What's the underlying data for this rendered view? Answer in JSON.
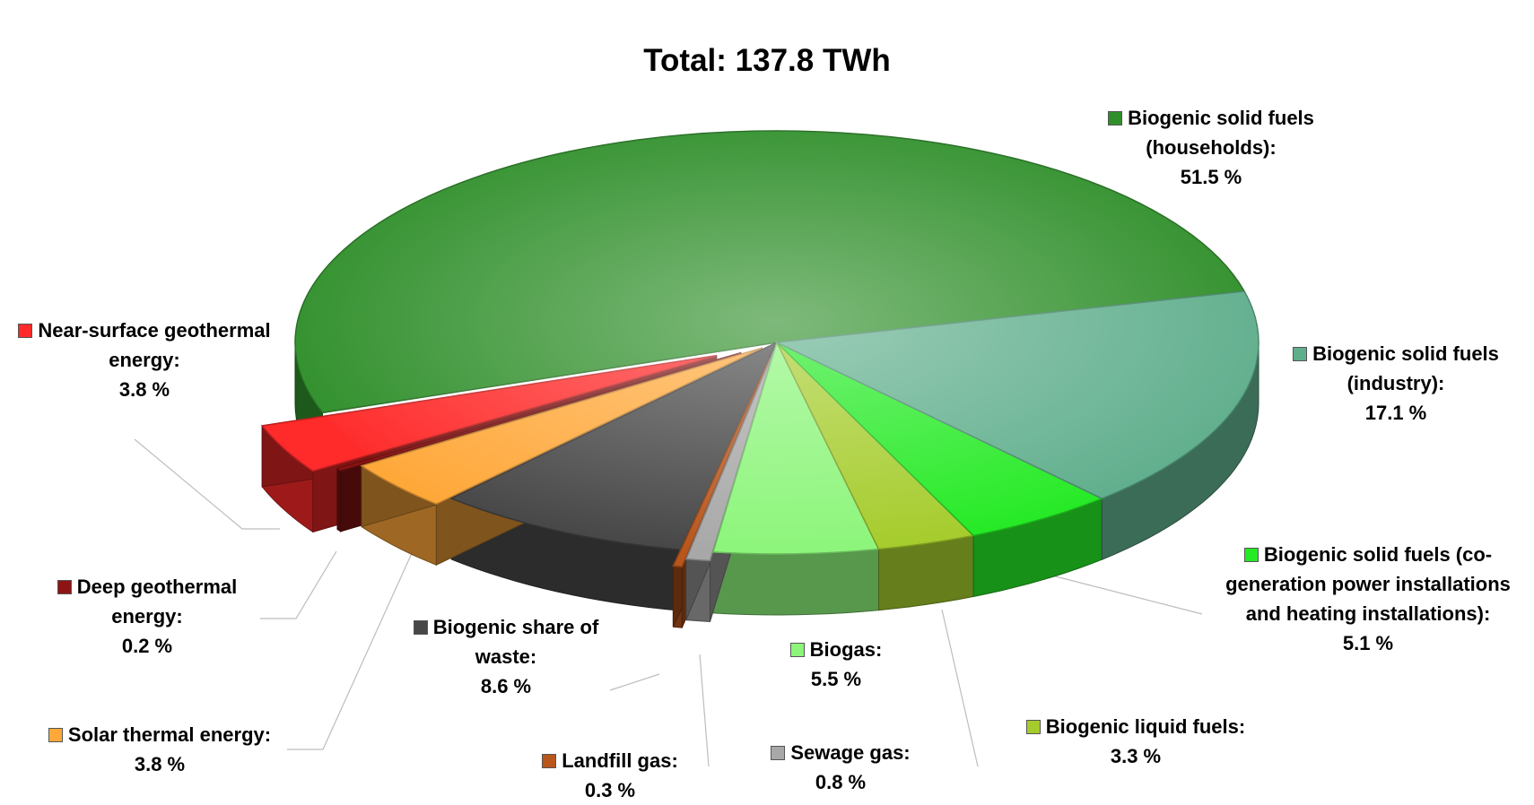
{
  "chart_data": {
    "type": "pie3d",
    "title": "Total: 137.8 TWh",
    "labels": [
      "Biogenic solid fuels (households):",
      "Near-surface geothermal energy:",
      "Deep geothermal energy:",
      "Solar thermal energy:",
      "Biogenic share of waste:",
      "Landfill gas:",
      "Sewage gas:",
      "Biogas:",
      "Biogenic liquid fuels:",
      "Biogenic solid fuels (co-generation power installations and heating installations):",
      "Biogenic solid fuels (industry):"
    ],
    "values": [
      51.5,
      3.8,
      0.2,
      3.8,
      8.6,
      0.3,
      0.8,
      5.5,
      3.3,
      5.1,
      17.1
    ],
    "value_labels": [
      "51.5 %",
      "3.8 %",
      "0.2 %",
      "3.8 %",
      "8.6 %",
      "0.3 %",
      "0.8 %",
      "5.5 %",
      "3.3 %",
      "5.1 %",
      "17.1 %"
    ],
    "colors": [
      "#2f8f2a",
      "#ff2a2a",
      "#8e1414",
      "#ffa83a",
      "#474747",
      "#b8561c",
      "#a8a8a8",
      "#8cf57a",
      "#a5cc2c",
      "#25ea25",
      "#5fae8c"
    ]
  }
}
